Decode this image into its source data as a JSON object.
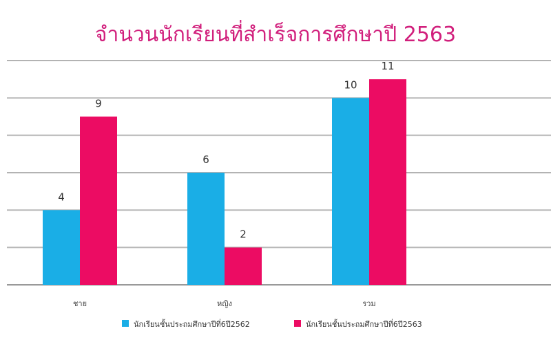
{
  "colors": {
    "title": "#d11f7c",
    "grid": "#b3b3b3",
    "axis": "#999999"
  },
  "chart_data": {
    "type": "bar",
    "title": "จำนวนนักเรียนที่สำเร็จการศึกษาปี 2563",
    "categories": [
      "ชาย",
      "หญิง",
      "รวม"
    ],
    "series": [
      {
        "name": "นักเรียนชั้นประถมศึกษาปีที่6ปี2562",
        "values": [
          4,
          6,
          10
        ],
        "color": "#1aaee6"
      },
      {
        "name": "นักเรียนชั้นประถมศึกษาปีที่6ปี2563",
        "values": [
          9,
          2,
          11
        ],
        "color": "#ec0c63"
      }
    ],
    "ylim": [
      0,
      12
    ],
    "ytick_step": 2,
    "grid": true,
    "legend_position": "bottom",
    "data_labels": true
  }
}
